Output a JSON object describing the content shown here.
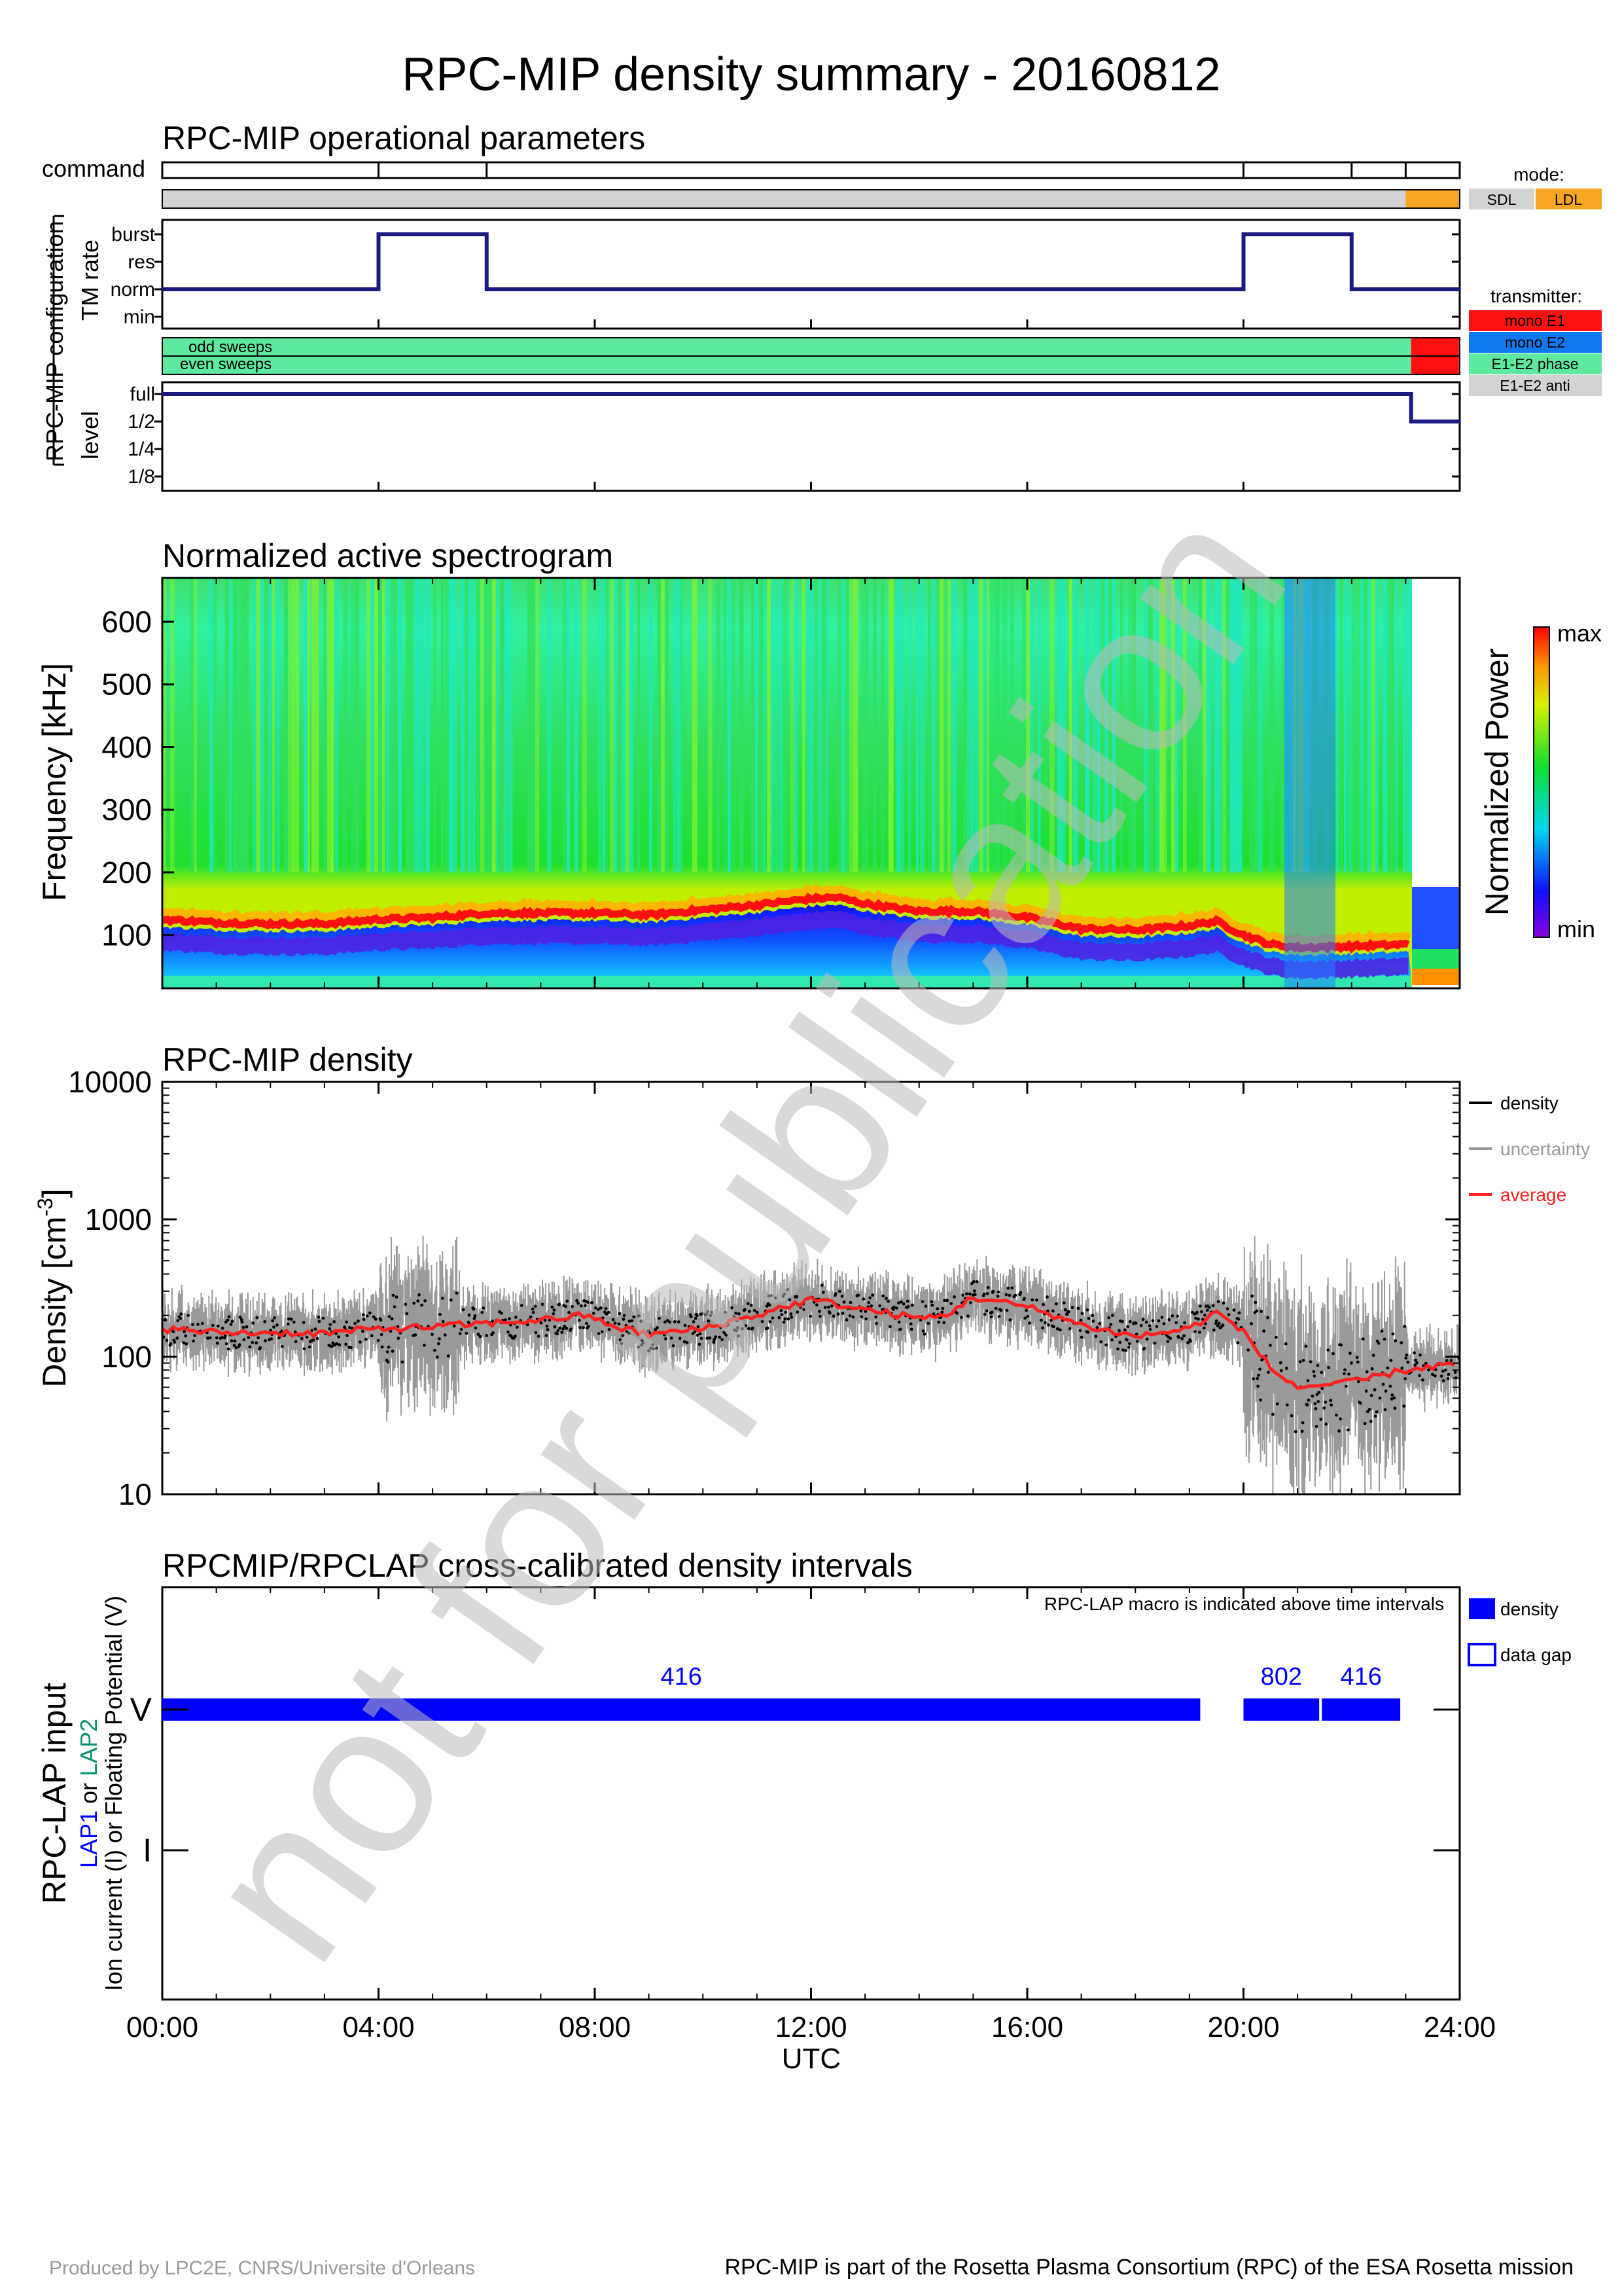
{
  "title": "RPC-MIP density summary - 20160812",
  "footer": {
    "left": "Produced by LPC2E, CNRS/Universite d'Orleans",
    "right": "RPC-MIP is part of the Rosetta Plasma Consortium (RPC) of the ESA Rosetta mission"
  },
  "watermark": "not for publication",
  "time_axis": {
    "tick_labels": [
      "00:00",
      "04:00",
      "08:00",
      "12:00",
      "16:00",
      "20:00",
      "24:00"
    ],
    "xlabel": "UTC",
    "range_hours": [
      0,
      24
    ]
  },
  "colors": {
    "navy": "#1a1a80",
    "grey": "#d3d3d3",
    "sdl": "#d3d3d3",
    "ldl": "#f5a623",
    "mono_e1": "#ff1111",
    "mono_e2": "#1178f0",
    "e1e2_phase": "#5ee8a0",
    "e1e2_anti": "#d3d3d3",
    "density_bar": "#0000ff",
    "lap1": "#0000ff",
    "lap2": "#0a9070",
    "avg": "#ff2020"
  },
  "ops": {
    "title": "RPC-MIP operational parameters",
    "command_label": "command",
    "config_label": "RPC-MIP configuration",
    "tm_rate_label": "TM rate",
    "level_label": "level",
    "mode_legend": {
      "title": "mode:",
      "items": [
        "SDL",
        "LDL"
      ]
    },
    "transmitter_legend": {
      "title": "transmitter:",
      "items": [
        "mono E1",
        "mono E2",
        "E1-E2 phase",
        "E1-E2 anti"
      ]
    },
    "sweep_labels": [
      "odd sweeps",
      "even sweeps"
    ]
  },
  "spectrogram": {
    "title": "Normalized active spectrogram",
    "ylabel": "Frequency [kHz]",
    "colorbar_label": "Normalized Power",
    "colorbar_max": "max",
    "colorbar_min": "min"
  },
  "density": {
    "title": "RPC-MIP density",
    "ylabel_main": "Density [cm",
    "ylabel_sup": "-3",
    "ylabel_end": "]",
    "legend": [
      "density",
      "uncertainty",
      "average"
    ]
  },
  "lap": {
    "title": "RPCMIP/RPCLAP cross-calibrated density intervals",
    "note": "RPC-LAP macro is indicated above time intervals",
    "ylabel1": "RPC-LAP input",
    "ylabel2_pre": "LAP1",
    "ylabel2_mid": " or ",
    "ylabel2_post": "LAP2",
    "ylabel3": "Ion current (I) or Floating Potential (V)",
    "legend": [
      "density",
      "data gap"
    ]
  },
  "chart_data": [
    {
      "type": "line",
      "name": "command",
      "x_unit": "hours UTC",
      "command_ticks": [
        0,
        4,
        6,
        20,
        22,
        23,
        24
      ],
      "mode_segments": [
        {
          "start": 0,
          "end": 23.0,
          "mode": "SDL"
        },
        {
          "start": 23.0,
          "end": 24,
          "mode": "LDL"
        }
      ]
    },
    {
      "type": "line",
      "name": "TM rate",
      "y_tick_labels": [
        "burst",
        "res",
        "norm",
        "min"
      ],
      "x": [
        0,
        4,
        4,
        6,
        6,
        20,
        20,
        22,
        22,
        24
      ],
      "y": [
        "norm",
        "norm",
        "burst",
        "burst",
        "norm",
        "norm",
        "burst",
        "burst",
        "norm",
        "norm"
      ]
    },
    {
      "type": "bar",
      "name": "sweeps transmitter",
      "rows": [
        "odd sweeps",
        "even sweeps"
      ],
      "segments": [
        {
          "start": 0,
          "end": 23.1,
          "transmitter": "E1-E2 phase"
        },
        {
          "start": 23.1,
          "end": 24,
          "transmitter": "mono E1"
        }
      ]
    },
    {
      "type": "line",
      "name": "level",
      "y_tick_labels": [
        "full",
        "1/2",
        "1/4",
        "1/8"
      ],
      "x": [
        0,
        23.1,
        23.1,
        24
      ],
      "y": [
        "full",
        "full",
        "1/2",
        "1/2"
      ]
    },
    {
      "type": "heatmap",
      "name": "spectrogram",
      "yticks": [
        100,
        200,
        300,
        400,
        500,
        600
      ],
      "ylim": [
        15,
        670
      ],
      "plasma_line_khz": {
        "x": [
          0,
          1,
          2,
          3,
          4,
          5,
          6,
          7,
          8,
          9,
          10,
          11,
          12,
          12.5,
          13,
          14,
          15,
          16,
          17,
          18,
          19,
          19.5,
          20,
          20.5,
          21,
          22,
          23
        ],
        "y": [
          125,
          120,
          118,
          118,
          125,
          128,
          135,
          135,
          135,
          132,
          140,
          148,
          158,
          160,
          150,
          138,
          138,
          128,
          110,
          108,
          115,
          122,
          100,
          85,
          80,
          82,
          85
        ]
      }
    },
    {
      "type": "scatter",
      "name": "density",
      "yscale": "log",
      "ylim": [
        10,
        10000
      ],
      "yticks": [
        10,
        100,
        1000,
        10000
      ],
      "average": {
        "x": [
          0,
          1,
          2,
          3,
          4,
          5,
          6,
          7,
          7.8,
          8.5,
          9,
          10,
          11,
          12,
          13,
          14,
          14.5,
          15,
          16,
          17,
          18,
          19,
          19.5,
          20,
          20.5,
          21,
          22,
          23,
          24
        ],
        "y": [
          160,
          150,
          150,
          148,
          160,
          165,
          175,
          185,
          200,
          160,
          145,
          160,
          200,
          260,
          220,
          190,
          200,
          270,
          230,
          170,
          140,
          160,
          210,
          150,
          80,
          60,
          65,
          80,
          90
        ]
      }
    },
    {
      "type": "bar",
      "name": "LAP intervals",
      "rows": [
        "V",
        "I"
      ],
      "intervals": [
        {
          "row": "V",
          "start": 0,
          "end": 19.2,
          "macro": "416"
        },
        {
          "row": "V",
          "start": 20.0,
          "end": 21.4,
          "macro": "802"
        },
        {
          "row": "V",
          "start": 21.45,
          "end": 22.9,
          "macro": "416"
        }
      ]
    }
  ]
}
